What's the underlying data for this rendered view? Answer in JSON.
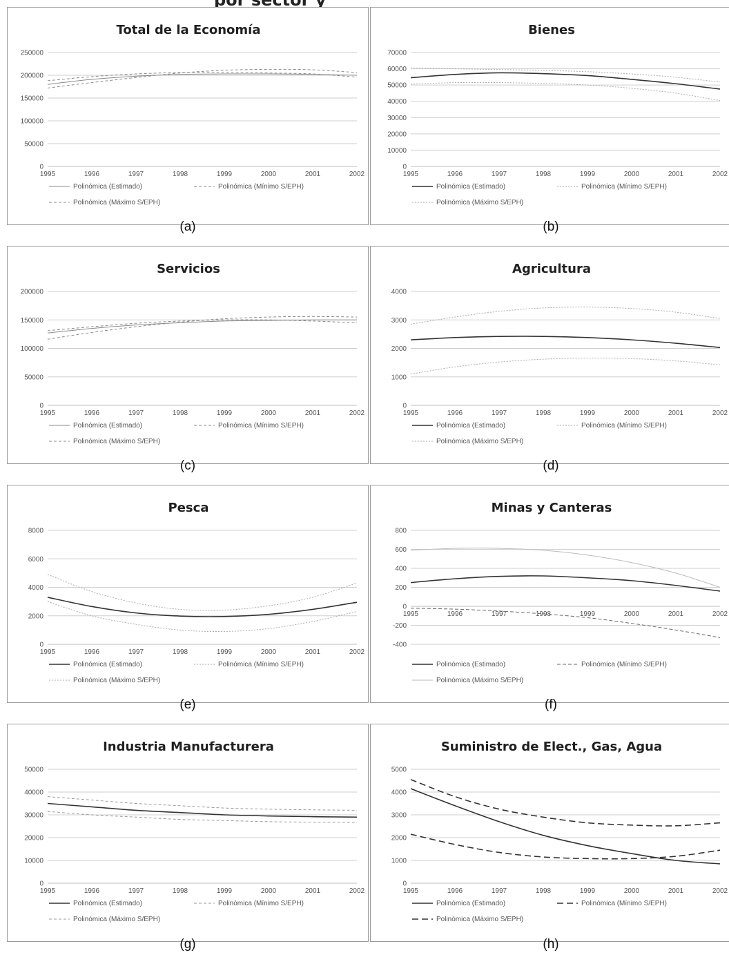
{
  "page_title": "por sector y",
  "captions": [
    "(a)",
    "(b)",
    "(c)",
    "(d)",
    "(e)",
    "(f)",
    "(g)",
    "(h)"
  ],
  "chart_data": [
    {
      "type": "line",
      "title": "Total de la Economía",
      "x": [
        "1995",
        "1996",
        "1997",
        "1998",
        "1999",
        "2000",
        "2001",
        "2002"
      ],
      "ylim": [
        0,
        250000
      ],
      "yticks": [
        "0",
        "50000",
        "100000",
        "150000",
        "200000",
        "250000"
      ],
      "grid": true,
      "legend_position": "bottom",
      "series": [
        {
          "name": "Polinómica (Estimado)",
          "color": "#8a8a8a",
          "dash": "",
          "width": 1,
          "values": [
            180000,
            191000,
            198000,
            202000,
            203000,
            203000,
            202000,
            200000
          ]
        },
        {
          "name": "Polinómica (Mínimo S/EPH)",
          "color": "#8a8a8a",
          "dash": "4 3",
          "width": 1,
          "values": [
            188000,
            197000,
            203000,
            206000,
            206000,
            205000,
            203000,
            196000
          ]
        },
        {
          "name": "Polinómica (Máximo S/EPH)",
          "color": "#8a8a8a",
          "dash": "4 3",
          "width": 1,
          "values": [
            172000,
            184000,
            195000,
            205000,
            211000,
            213000,
            212000,
            206000
          ]
        }
      ]
    },
    {
      "type": "line",
      "title": "Bienes",
      "x": [
        "1995",
        "1996",
        "1997",
        "1998",
        "1999",
        "2000",
        "2001",
        "2002"
      ],
      "ylim": [
        0,
        70000
      ],
      "yticks": [
        "0",
        "10000",
        "20000",
        "30000",
        "40000",
        "50000",
        "60000",
        "70000"
      ],
      "grid": true,
      "legend_position": "bottom",
      "series": [
        {
          "name": "Polinómica (Estimado)",
          "color": "#333333",
          "dash": "",
          "width": 1.6,
          "values": [
            54500,
            56500,
            57500,
            57000,
            55800,
            53500,
            50800,
            47500
          ]
        },
        {
          "name": "Polinómica (Mínimo S/EPH)",
          "color": "#aaaaaa",
          "dash": "2 2",
          "width": 1,
          "values": [
            60500,
            60000,
            59500,
            59000,
            58200,
            56800,
            54800,
            51800
          ]
        },
        {
          "name": "Polinómica (Máximo S/EPH)",
          "color": "#aaaaaa",
          "dash": "2 2",
          "width": 1,
          "values": [
            50500,
            51500,
            51500,
            51000,
            50000,
            48000,
            45000,
            40500
          ]
        }
      ]
    },
    {
      "type": "line",
      "title": "Servicios",
      "x": [
        "1995",
        "1996",
        "1997",
        "1998",
        "1999",
        "2000",
        "2001",
        "2002"
      ],
      "ylim": [
        0,
        200000
      ],
      "yticks": [
        "0",
        "50000",
        "100000",
        "150000",
        "200000"
      ],
      "grid": true,
      "legend_position": "bottom",
      "series": [
        {
          "name": "Polinómica (Estimado)",
          "color": "#8a8a8a",
          "dash": "",
          "width": 1,
          "values": [
            127000,
            135000,
            141000,
            145000,
            148000,
            149000,
            150000,
            150000
          ]
        },
        {
          "name": "Polinómica (Mínimo S/EPH)",
          "color": "#8a8a8a",
          "dash": "4 3",
          "width": 1,
          "values": [
            131000,
            138000,
            144000,
            148000,
            150000,
            150000,
            148000,
            145000
          ]
        },
        {
          "name": "Polinómica (Máximo S/EPH)",
          "color": "#8a8a8a",
          "dash": "4 3",
          "width": 1,
          "values": [
            116000,
            128000,
            138000,
            146000,
            152000,
            155000,
            156000,
            155000
          ]
        }
      ]
    },
    {
      "type": "line",
      "title": "Agricultura",
      "x": [
        "1995",
        "1996",
        "1997",
        "1998",
        "1999",
        "2000",
        "2001",
        "2002"
      ],
      "ylim": [
        0,
        4000
      ],
      "yticks": [
        "0",
        "1000",
        "2000",
        "3000",
        "4000"
      ],
      "grid": true,
      "legend_position": "bottom",
      "series": [
        {
          "name": "Polinómica (Estimado)",
          "color": "#333333",
          "dash": "",
          "width": 1.6,
          "values": [
            2300,
            2380,
            2420,
            2420,
            2380,
            2300,
            2180,
            2030
          ]
        },
        {
          "name": "Polinómica (Mínimo S/EPH)",
          "color": "#aaaaaa",
          "dash": "2 2",
          "width": 1,
          "values": [
            1100,
            1350,
            1520,
            1620,
            1660,
            1640,
            1560,
            1420
          ]
        },
        {
          "name": "Polinómica (Máximo S/EPH)",
          "color": "#aaaaaa",
          "dash": "2 2",
          "width": 1,
          "values": [
            2850,
            3100,
            3300,
            3420,
            3450,
            3400,
            3270,
            3050
          ]
        }
      ]
    },
    {
      "type": "line",
      "title": "Pesca",
      "x": [
        "1995",
        "1996",
        "1997",
        "1998",
        "1999",
        "2000",
        "2001",
        "2002"
      ],
      "ylim": [
        0,
        8000
      ],
      "yticks": [
        "0",
        "2000",
        "4000",
        "6000",
        "8000"
      ],
      "grid": true,
      "legend_position": "bottom",
      "series": [
        {
          "name": "Polinómica (Estimado)",
          "color": "#333333",
          "dash": "",
          "width": 1.6,
          "values": [
            3300,
            2650,
            2200,
            1980,
            1950,
            2100,
            2450,
            2950
          ]
        },
        {
          "name": "Polinómica (Mínimo S/EPH)",
          "color": "#aaaaaa",
          "dash": "2 2",
          "width": 1,
          "values": [
            3000,
            2000,
            1400,
            1000,
            900,
            1100,
            1600,
            2300
          ]
        },
        {
          "name": "Polinómica (Máximo S/EPH)",
          "color": "#aaaaaa",
          "dash": "2 2",
          "width": 1,
          "values": [
            4900,
            3700,
            2900,
            2450,
            2400,
            2700,
            3300,
            4300
          ]
        }
      ]
    },
    {
      "type": "line",
      "title": "Minas y Canteras",
      "x": [
        "1995",
        "1996",
        "1997",
        "1998",
        "1999",
        "2000",
        "2001",
        "2002"
      ],
      "ylim": [
        -400,
        800
      ],
      "yticks": [
        "-400",
        "-200",
        "0",
        "200",
        "400",
        "600",
        "800"
      ],
      "grid": true,
      "legend_position": "bottom",
      "series": [
        {
          "name": "Polinómica (Estimado)",
          "color": "#333333",
          "dash": "",
          "width": 1.6,
          "values": [
            250,
            290,
            315,
            320,
            300,
            270,
            220,
            160
          ]
        },
        {
          "name": "Polinómica (Mínimo S/EPH)",
          "color": "#666666",
          "dash": "5 3",
          "width": 1,
          "values": [
            -20,
            -30,
            -50,
            -80,
            -120,
            -180,
            -250,
            -330
          ]
        },
        {
          "name": "Polinómica (Máximo S/EPH)",
          "color": "#bbbbbb",
          "dash": "",
          "width": 1,
          "values": [
            590,
            610,
            610,
            590,
            540,
            460,
            350,
            200
          ]
        }
      ]
    },
    {
      "type": "line",
      "title": "Industria Manufacturera",
      "x": [
        "1995",
        "1996",
        "1997",
        "1998",
        "1999",
        "2000",
        "2001",
        "2002"
      ],
      "ylim": [
        0,
        50000
      ],
      "yticks": [
        "0",
        "10000",
        "20000",
        "30000",
        "40000",
        "50000"
      ],
      "grid": true,
      "legend_position": "bottom",
      "series": [
        {
          "name": "Polinómica (Estimado)",
          "color": "#333333",
          "dash": "",
          "width": 1.6,
          "values": [
            35000,
            33500,
            32000,
            31000,
            30000,
            29500,
            29200,
            29000
          ]
        },
        {
          "name": "Polinómica (Mínimo S/EPH)",
          "color": "#999999",
          "dash": "4 3",
          "width": 1,
          "values": [
            38000,
            36500,
            35000,
            34000,
            33000,
            32500,
            32200,
            32000
          ]
        },
        {
          "name": "Polinómica (Máximo S/EPH)",
          "color": "#999999",
          "dash": "4 3",
          "width": 1,
          "values": [
            31500,
            30000,
            29000,
            28000,
            27500,
            27000,
            26800,
            26700
          ]
        }
      ]
    },
    {
      "type": "line",
      "title": "Suministro de Elect., Gas, Agua",
      "x": [
        "1995",
        "1996",
        "1997",
        "1998",
        "1999",
        "2000",
        "2001",
        "2002"
      ],
      "ylim": [
        0,
        5000
      ],
      "yticks": [
        "0",
        "1000",
        "2000",
        "3000",
        "4000",
        "5000"
      ],
      "grid": true,
      "legend_position": "bottom",
      "series": [
        {
          "name": "Polinómica (Estimado)",
          "color": "#333333",
          "dash": "",
          "width": 1.6,
          "values": [
            4150,
            3400,
            2700,
            2100,
            1650,
            1300,
            1000,
            850
          ]
        },
        {
          "name": "Polinómica (Mínimo S/EPH)",
          "color": "#333333",
          "dash": "9 5",
          "width": 1.6,
          "values": [
            2150,
            1700,
            1350,
            1150,
            1080,
            1080,
            1180,
            1450
          ]
        },
        {
          "name": "Polinómica (Máximo S/EPH)",
          "color": "#333333",
          "dash": "9 5",
          "width": 1.6,
          "values": [
            4550,
            3800,
            3250,
            2900,
            2650,
            2550,
            2520,
            2650
          ]
        }
      ]
    }
  ]
}
